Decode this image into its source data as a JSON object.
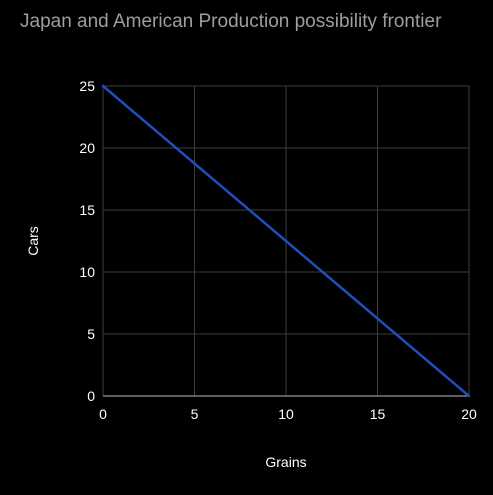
{
  "chart_data": {
    "type": "line",
    "title": "Japan and American Production possibility frontier",
    "xlabel": "Grains",
    "ylabel": "Cars",
    "xlim": [
      0,
      20
    ],
    "ylim": [
      0,
      25
    ],
    "x_ticks": [
      0,
      5,
      10,
      15,
      20
    ],
    "y_ticks": [
      0,
      5,
      10,
      15,
      20,
      25
    ],
    "grid": true,
    "background": "#000000",
    "series": [
      {
        "color": "#1f4fbf",
        "x": [
          0,
          20
        ],
        "y": [
          25,
          0
        ]
      }
    ]
  }
}
